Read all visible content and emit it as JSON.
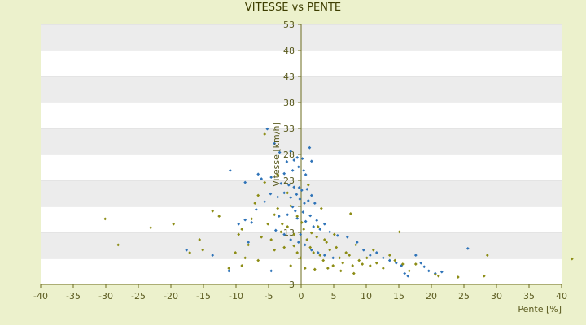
{
  "chart_data": {
    "type": "scatter",
    "title": "VITESSE vs PENTE",
    "xlabel": "Pente [%]",
    "ylabel": "Vitesse [km/h]",
    "xlim": [
      -40,
      40
    ],
    "ylim": [
      3,
      53
    ],
    "x_ticks": [
      -40,
      -35,
      -30,
      -25,
      -20,
      -15,
      -10,
      -5,
      0,
      5,
      10,
      15,
      20,
      25,
      30,
      35,
      40
    ],
    "y_ticks": [
      3,
      8,
      13,
      18,
      23,
      28,
      33,
      38,
      43,
      48,
      53
    ],
    "y_tick_labels": [
      "3",
      "",
      "13",
      "",
      "23",
      "28",
      "33",
      "38",
      "43",
      "48",
      "53"
    ],
    "band_fill": "#ececec",
    "grid": true,
    "series": [
      {
        "color": "#2e73b8",
        "marker": "diamond",
        "points": [
          [
            -5.2,
            32.9
          ],
          [
            -4.1,
            30.1
          ],
          [
            -3.3,
            28.4
          ],
          [
            -2.2,
            26.6
          ],
          [
            -1.6,
            28.6
          ],
          [
            -1.1,
            26.9
          ],
          [
            -0.6,
            27.4
          ],
          [
            0.2,
            27.2
          ],
          [
            1.3,
            29.3
          ],
          [
            1.6,
            26.7
          ],
          [
            -0.4,
            25.6
          ],
          [
            0.4,
            24.9
          ],
          [
            -1.3,
            24.9
          ],
          [
            0.7,
            24.1
          ],
          [
            -2.6,
            24.3
          ],
          [
            -4.6,
            23.6
          ],
          [
            -6.1,
            23.3
          ],
          [
            -8.6,
            22.6
          ],
          [
            -10.9,
            24.9
          ],
          [
            -6.6,
            24.2
          ],
          [
            -3.1,
            22.4
          ],
          [
            -1.9,
            22.1
          ],
          [
            -1.1,
            21.7
          ],
          [
            -0.3,
            21.6
          ],
          [
            0.1,
            21.1
          ],
          [
            0.9,
            21.3
          ],
          [
            1.6,
            20.1
          ],
          [
            -0.7,
            20.3
          ],
          [
            -1.6,
            19.7
          ],
          [
            -2.6,
            20.6
          ],
          [
            -3.6,
            19.8
          ],
          [
            -4.7,
            20.4
          ],
          [
            -5.6,
            18.9
          ],
          [
            -0.2,
            19.4
          ],
          [
            0.5,
            18.6
          ],
          [
            1.1,
            19.1
          ],
          [
            2.1,
            18.6
          ],
          [
            -1.3,
            17.9
          ],
          [
            -0.9,
            17.1
          ],
          [
            0.3,
            16.9
          ],
          [
            1.4,
            16.2
          ],
          [
            2.4,
            15.3
          ],
          [
            3.6,
            14.6
          ],
          [
            -2.1,
            16.4
          ],
          [
            -3.4,
            16.1
          ],
          [
            -6.9,
            17.4
          ],
          [
            -8.6,
            15.4
          ],
          [
            -9.6,
            14.6
          ],
          [
            -7.6,
            14.9
          ],
          [
            -0.6,
            15.7
          ],
          [
            0.7,
            15.1
          ],
          [
            1.9,
            14.1
          ],
          [
            2.9,
            13.6
          ],
          [
            4.4,
            13.1
          ],
          [
            5.6,
            12.4
          ],
          [
            7.1,
            12.1
          ],
          [
            8.6,
            11.1
          ],
          [
            9.6,
            9.6
          ],
          [
            10.6,
            8.6
          ],
          [
            11.6,
            9.1
          ],
          [
            12.6,
            8.1
          ],
          [
            13.6,
            7.6
          ],
          [
            14.6,
            7.1
          ],
          [
            15.4,
            6.6
          ],
          [
            15.9,
            5.1
          ],
          [
            16.4,
            4.6
          ],
          [
            17.6,
            8.6
          ],
          [
            18.4,
            7.1
          ],
          [
            18.9,
            6.4
          ],
          [
            19.6,
            5.6
          ],
          [
            20.6,
            5.1
          ],
          [
            21.6,
            5.4
          ],
          [
            25.6,
            9.9
          ],
          [
            -0.1,
            12.6
          ],
          [
            -0.4,
            11.1
          ],
          [
            0.6,
            10.6
          ],
          [
            1.6,
            9.6
          ],
          [
            2.6,
            9.1
          ],
          [
            3.6,
            8.6
          ],
          [
            4.9,
            8.1
          ],
          [
            -1.6,
            11.6
          ],
          [
            -2.6,
            12.6
          ],
          [
            -3.9,
            13.4
          ],
          [
            -8.1,
            11.1
          ],
          [
            -13.6,
            8.6
          ],
          [
            -17.6,
            9.6
          ],
          [
            -11.1,
            5.6
          ],
          [
            -4.6,
            5.6
          ]
        ]
      },
      {
        "color": "#8c8c14",
        "marker": "diamond",
        "points": [
          [
            -30.1,
            15.6
          ],
          [
            -28.1,
            10.6
          ],
          [
            -23.1,
            13.9
          ],
          [
            -19.6,
            14.6
          ],
          [
            -17.1,
            9.1
          ],
          [
            -15.6,
            11.6
          ],
          [
            -15.1,
            9.6
          ],
          [
            -13.6,
            17.1
          ],
          [
            -12.6,
            16.1
          ],
          [
            -11.1,
            6.1
          ],
          [
            -10.1,
            9.1
          ],
          [
            -9.6,
            12.6
          ],
          [
            -9.1,
            13.6
          ],
          [
            -8.6,
            8.1
          ],
          [
            -8.1,
            10.6
          ],
          [
            -7.6,
            15.6
          ],
          [
            -7.1,
            18.6
          ],
          [
            -6.6,
            20.1
          ],
          [
            -6.1,
            12.1
          ],
          [
            -5.6,
            22.6
          ],
          [
            -5.1,
            14.6
          ],
          [
            -4.6,
            11.6
          ],
          [
            -4.1,
            9.6
          ],
          [
            -3.6,
            17.6
          ],
          [
            -3.1,
            13.1
          ],
          [
            -2.6,
            10.1
          ],
          [
            -2.1,
            14.1
          ],
          [
            -1.6,
            18.1
          ],
          [
            -1.1,
            12.6
          ],
          [
            -0.6,
            9.1
          ],
          [
            -0.1,
            8.1
          ],
          [
            0.4,
            13.6
          ],
          [
            0.9,
            11.6
          ],
          [
            1.4,
            10.1
          ],
          [
            1.9,
            9.1
          ],
          [
            2.4,
            12.1
          ],
          [
            2.9,
            8.6
          ],
          [
            3.4,
            7.6
          ],
          [
            3.9,
            11.1
          ],
          [
            4.4,
            9.6
          ],
          [
            4.9,
            6.6
          ],
          [
            5.4,
            10.1
          ],
          [
            5.9,
            8.1
          ],
          [
            6.4,
            7.1
          ],
          [
            6.9,
            9.1
          ],
          [
            7.4,
            8.6
          ],
          [
            7.9,
            6.6
          ],
          [
            8.4,
            10.6
          ],
          [
            8.9,
            7.6
          ],
          [
            9.4,
            6.9
          ],
          [
            10.1,
            8.1
          ],
          [
            10.6,
            6.6
          ],
          [
            11.1,
            9.6
          ],
          [
            11.6,
            7.1
          ],
          [
            12.6,
            6.1
          ],
          [
            13.6,
            8.6
          ],
          [
            14.4,
            7.6
          ],
          [
            15.1,
            13.1
          ],
          [
            15.6,
            6.9
          ],
          [
            16.6,
            5.6
          ],
          [
            17.6,
            6.9
          ],
          [
            20.6,
            4.9
          ],
          [
            21.1,
            4.6
          ],
          [
            24.1,
            4.4
          ],
          [
            28.1,
            4.6
          ],
          [
            28.6,
            8.6
          ],
          [
            41.6,
            7.9
          ],
          [
            -5.6,
            31.9
          ],
          [
            -2.1,
            20.6
          ],
          [
            -3.6,
            24.1
          ],
          [
            1.1,
            22.1
          ],
          [
            3.1,
            17.6
          ],
          [
            7.6,
            16.6
          ],
          [
            -1.6,
            6.6
          ],
          [
            0.6,
            6.1
          ],
          [
            2.1,
            5.9
          ],
          [
            4.1,
            6.1
          ],
          [
            6.1,
            5.6
          ],
          [
            8.1,
            5.1
          ],
          [
            -6.6,
            7.6
          ],
          [
            -9.1,
            6.6
          ],
          [
            -0.6,
            16.1
          ],
          [
            0.1,
            14.9
          ],
          [
            -2.9,
            14.6
          ],
          [
            -4.1,
            16.4
          ],
          [
            -1.1,
            10.4
          ],
          [
            1.6,
            12.9
          ],
          [
            3.6,
            11.6
          ],
          [
            5.1,
            12.6
          ],
          [
            2.6,
            14.1
          ]
        ]
      }
    ]
  }
}
